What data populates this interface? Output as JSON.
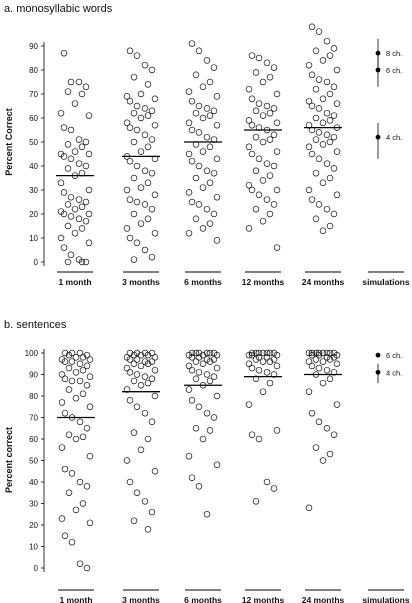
{
  "chart_data": [
    {
      "type": "scatter",
      "title": "a. monosyllabic words",
      "ylabel": "Percent Correct",
      "ylim": [
        0,
        100
      ],
      "yticks": [
        0,
        10,
        20,
        30,
        40,
        50,
        60,
        70,
        80,
        90
      ],
      "categories": [
        "1 month",
        "3 months",
        "6 months",
        "12 months",
        "24 months",
        "simulations"
      ],
      "means": [
        36,
        44,
        50,
        55,
        56,
        null
      ],
      "series": [
        {
          "category": "1 month",
          "values": [
            87,
            75,
            75,
            73,
            71,
            70,
            66,
            62,
            61,
            56,
            55,
            51,
            50,
            49,
            48,
            46,
            45,
            45,
            44,
            43,
            41,
            40,
            39,
            37,
            36,
            33,
            30,
            29,
            27,
            26,
            25,
            24,
            23,
            22,
            21,
            20,
            20,
            19,
            18,
            17,
            15,
            14,
            12,
            10,
            8,
            6,
            3,
            1,
            0,
            0,
            0
          ]
        },
        {
          "category": "3 months",
          "values": [
            88,
            86,
            82,
            80,
            77,
            74,
            70,
            69,
            68,
            67,
            65,
            64,
            63,
            62,
            61,
            60,
            58,
            57,
            56,
            55,
            53,
            51,
            50,
            48,
            46,
            44,
            43,
            42,
            40,
            38,
            37,
            35,
            33,
            31,
            30,
            28,
            26,
            25,
            24,
            22,
            20,
            18,
            16,
            14,
            12,
            10,
            8,
            5,
            2,
            1
          ]
        },
        {
          "category": "6 months",
          "values": [
            91,
            88,
            84,
            81,
            78,
            75,
            73,
            71,
            69,
            67,
            65,
            64,
            63,
            62,
            61,
            60,
            58,
            57,
            55,
            54,
            52,
            51,
            49,
            48,
            46,
            45,
            43,
            42,
            40,
            38,
            37,
            35,
            33,
            31,
            29,
            27,
            25,
            24,
            22,
            20,
            18,
            16,
            14,
            12,
            9
          ]
        },
        {
          "category": "12 months",
          "values": [
            86,
            85,
            83,
            81,
            79,
            77,
            75,
            72,
            70,
            68,
            66,
            65,
            64,
            63,
            62,
            61,
            59,
            58,
            57,
            56,
            55,
            53,
            52,
            51,
            50,
            48,
            46,
            45,
            43,
            41,
            40,
            38,
            36,
            34,
            32,
            30,
            30,
            28,
            26,
            24,
            22,
            20,
            17,
            14,
            6
          ]
        },
        {
          "category": "24 months",
          "values": [
            98,
            96,
            92,
            89,
            88,
            86,
            84,
            82,
            80,
            78,
            76,
            75,
            73,
            72,
            70,
            68,
            67,
            66,
            65,
            64,
            62,
            61,
            60,
            59,
            58,
            57,
            56,
            55,
            54,
            53,
            52,
            51,
            50,
            49,
            48,
            46,
            45,
            43,
            41,
            39,
            37,
            35,
            33,
            30,
            28,
            26,
            24,
            22,
            20,
            18,
            15,
            13
          ]
        }
      ],
      "simulations": [
        {
          "label": "8 ch.",
          "value": 87,
          "range": [
            80,
            93
          ]
        },
        {
          "label": "6 ch.",
          "value": 80,
          "range": [
            73,
            87
          ]
        },
        {
          "label": "4 ch.",
          "value": 52,
          "range": [
            43,
            58
          ]
        }
      ]
    },
    {
      "type": "scatter",
      "title": "b. sentences",
      "ylabel": "Percent correct",
      "ylim": [
        0,
        100
      ],
      "yticks": [
        0,
        10,
        20,
        30,
        40,
        50,
        60,
        70,
        80,
        90,
        100
      ],
      "categories": [
        "1 month",
        "3 months",
        "6 months",
        "12 months",
        "24 months",
        "simulations"
      ],
      "means": [
        70,
        82,
        85,
        89,
        90,
        null
      ],
      "series": [
        {
          "category": "1 month",
          "values": [
            100,
            100,
            100,
            99,
            99,
            98,
            98,
            97,
            97,
            96,
            96,
            95,
            94,
            93,
            92,
            91,
            90,
            89,
            88,
            87,
            87,
            85,
            83,
            81,
            79,
            77,
            75,
            72,
            70,
            68,
            65,
            62,
            61,
            60,
            56,
            52,
            46,
            44,
            40,
            38,
            35,
            30,
            27,
            23,
            21,
            15,
            12,
            2,
            0
          ]
        },
        {
          "category": "3 months",
          "values": [
            100,
            100,
            100,
            100,
            99,
            99,
            99,
            98,
            98,
            97,
            97,
            96,
            96,
            95,
            95,
            94,
            93,
            92,
            91,
            90,
            89,
            88,
            87,
            86,
            85,
            83,
            80,
            78,
            75,
            72,
            68,
            63,
            60,
            55,
            50,
            45,
            40,
            35,
            31,
            26,
            22,
            18
          ]
        },
        {
          "category": "6 months",
          "values": [
            100,
            100,
            100,
            100,
            100,
            100,
            99,
            99,
            99,
            98,
            98,
            97,
            97,
            96,
            96,
            95,
            94,
            93,
            92,
            91,
            90,
            89,
            88,
            87,
            85,
            83,
            80,
            78,
            75,
            72,
            70,
            65,
            64,
            60,
            52,
            48,
            42,
            38,
            25
          ]
        },
        {
          "category": "12 months",
          "values": [
            100,
            100,
            100,
            100,
            100,
            100,
            100,
            99,
            99,
            99,
            98,
            98,
            97,
            97,
            96,
            96,
            95,
            94,
            93,
            92,
            91,
            90,
            88,
            86,
            82,
            76,
            64,
            62,
            60,
            40,
            37,
            31
          ]
        },
        {
          "category": "24 months",
          "values": [
            100,
            100,
            100,
            100,
            100,
            100,
            100,
            100,
            99,
            99,
            99,
            98,
            98,
            97,
            97,
            96,
            96,
            95,
            94,
            93,
            92,
            91,
            90,
            88,
            86,
            82,
            76,
            72,
            68,
            65,
            62,
            56,
            53,
            50,
            28
          ]
        }
      ],
      "simulations": [
        {
          "label": "6 ch.",
          "value": 99,
          "range": [
            98,
            100
          ]
        },
        {
          "label": "4 ch.",
          "value": 91,
          "range": [
            86,
            95
          ]
        }
      ]
    }
  ]
}
